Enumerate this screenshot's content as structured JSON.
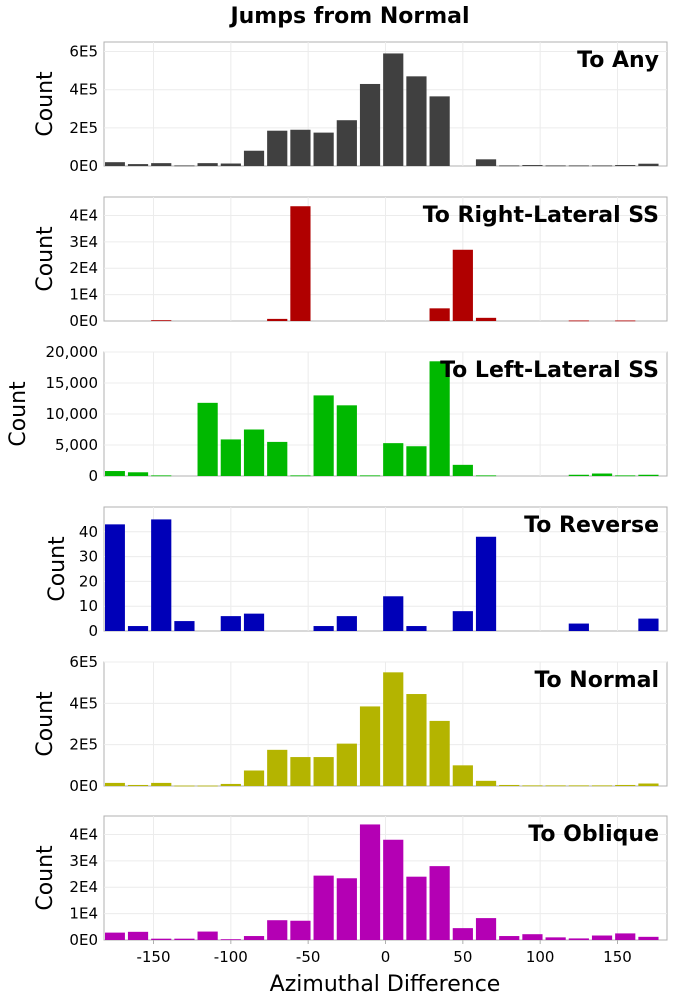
{
  "title": "Jumps from Normal",
  "xlabel": "Azimuthal Difference",
  "x_ticks": [
    -150,
    -100,
    -50,
    0,
    50,
    100,
    150
  ],
  "chart_data": [
    {
      "type": "bar",
      "title": "To Any",
      "ylabel": "Count",
      "color": "#404040",
      "ylim": [
        0,
        650000
      ],
      "yticks": [
        0,
        200000,
        400000,
        600000
      ],
      "ytick_labels": [
        "0E0",
        "2E5",
        "4E5",
        "6E5"
      ],
      "x": [
        -175,
        -160,
        -145,
        -130,
        -115,
        -100,
        -85,
        -70,
        -55,
        -40,
        -25,
        -10,
        5,
        20,
        35,
        50,
        65,
        80,
        95,
        110,
        125,
        140,
        155,
        170
      ],
      "values": [
        20000,
        10000,
        15000,
        3000,
        15000,
        13000,
        80000,
        185000,
        190000,
        175000,
        240000,
        430000,
        590000,
        470000,
        365000,
        0,
        35000,
        3000,
        5000,
        3000,
        3000,
        3000,
        5000,
        12000
      ]
    },
    {
      "type": "bar",
      "title": "To Right-Lateral SS",
      "ylabel": "Count",
      "color": "#b00000",
      "ylim": [
        0,
        47000
      ],
      "yticks": [
        0,
        10000,
        20000,
        30000,
        40000
      ],
      "ytick_labels": [
        "0E0",
        "1E4",
        "2E4",
        "3E4",
        "4E4"
      ],
      "x": [
        -175,
        -160,
        -145,
        -130,
        -115,
        -100,
        -85,
        -70,
        -55,
        -40,
        -25,
        -10,
        5,
        20,
        35,
        50,
        65,
        80,
        95,
        110,
        125,
        140,
        155,
        170
      ],
      "values": [
        0,
        0,
        300,
        0,
        0,
        0,
        0,
        800,
        43500,
        0,
        0,
        0,
        0,
        0,
        4800,
        27000,
        1200,
        0,
        0,
        0,
        200,
        0,
        200,
        0
      ]
    },
    {
      "type": "bar",
      "title": "To Left-Lateral SS",
      "ylabel": "Count",
      "color": "#00b800",
      "ylim": [
        0,
        20000
      ],
      "yticks": [
        0,
        5000,
        10000,
        15000,
        20000
      ],
      "ytick_labels": [
        "0",
        "5,000",
        "10,000",
        "15,000",
        "20,000"
      ],
      "x": [
        -175,
        -160,
        -145,
        -130,
        -115,
        -100,
        -85,
        -70,
        -55,
        -40,
        -25,
        -10,
        5,
        20,
        35,
        50,
        65,
        80,
        95,
        110,
        125,
        140,
        155,
        170
      ],
      "values": [
        800,
        600,
        100,
        0,
        11800,
        5900,
        7500,
        5500,
        100,
        13000,
        11400,
        100,
        5300,
        4800,
        18500,
        1800,
        100,
        0,
        0,
        0,
        200,
        400,
        100,
        200
      ]
    },
    {
      "type": "bar",
      "title": "To Reverse",
      "ylabel": "Count",
      "color": "#0000b8",
      "ylim": [
        0,
        50
      ],
      "yticks": [
        0,
        10,
        20,
        30,
        40
      ],
      "ytick_labels": [
        "0",
        "10",
        "20",
        "30",
        "40"
      ],
      "x": [
        -175,
        -160,
        -145,
        -130,
        -115,
        -100,
        -85,
        -70,
        -55,
        -40,
        -25,
        -10,
        5,
        20,
        35,
        50,
        65,
        80,
        95,
        110,
        125,
        140,
        155,
        170
      ],
      "values": [
        43,
        2,
        45,
        4,
        0,
        6,
        7,
        0,
        0,
        2,
        6,
        0,
        14,
        2,
        0,
        8,
        38,
        0,
        0,
        0,
        3,
        0,
        0,
        5
      ]
    },
    {
      "type": "bar",
      "title": "To Normal",
      "ylabel": "Count",
      "color": "#b4b400",
      "ylim": [
        0,
        600000
      ],
      "yticks": [
        0,
        200000,
        400000,
        600000
      ],
      "ytick_labels": [
        "0E0",
        "2E5",
        "4E5",
        "6E5"
      ],
      "x": [
        -175,
        -160,
        -145,
        -130,
        -115,
        -100,
        -85,
        -70,
        -55,
        -40,
        -25,
        -10,
        5,
        20,
        35,
        50,
        65,
        80,
        95,
        110,
        125,
        140,
        155,
        170
      ],
      "values": [
        15000,
        5000,
        15000,
        2000,
        2000,
        10000,
        75000,
        175000,
        140000,
        140000,
        205000,
        385000,
        550000,
        445000,
        315000,
        100000,
        25000,
        5000,
        3000,
        3000,
        3000,
        3000,
        5000,
        12000
      ]
    },
    {
      "type": "bar",
      "title": "To Oblique",
      "ylabel": "Count",
      "color": "#b400b4",
      "ylim": [
        0,
        47000
      ],
      "yticks": [
        0,
        10000,
        20000,
        30000,
        40000
      ],
      "ytick_labels": [
        "0E0",
        "1E4",
        "2E4",
        "3E4",
        "4E4"
      ],
      "x": [
        -175,
        -160,
        -145,
        -130,
        -115,
        -100,
        -85,
        -70,
        -55,
        -40,
        -25,
        -10,
        5,
        20,
        35,
        50,
        65,
        80,
        95,
        110,
        125,
        140,
        155,
        170
      ],
      "values": [
        2800,
        3100,
        500,
        500,
        3200,
        300,
        1500,
        7500,
        7300,
        24400,
        23400,
        43800,
        38000,
        24000,
        28000,
        4500,
        8300,
        1500,
        2200,
        1000,
        600,
        1700,
        2500,
        1200
      ]
    }
  ]
}
